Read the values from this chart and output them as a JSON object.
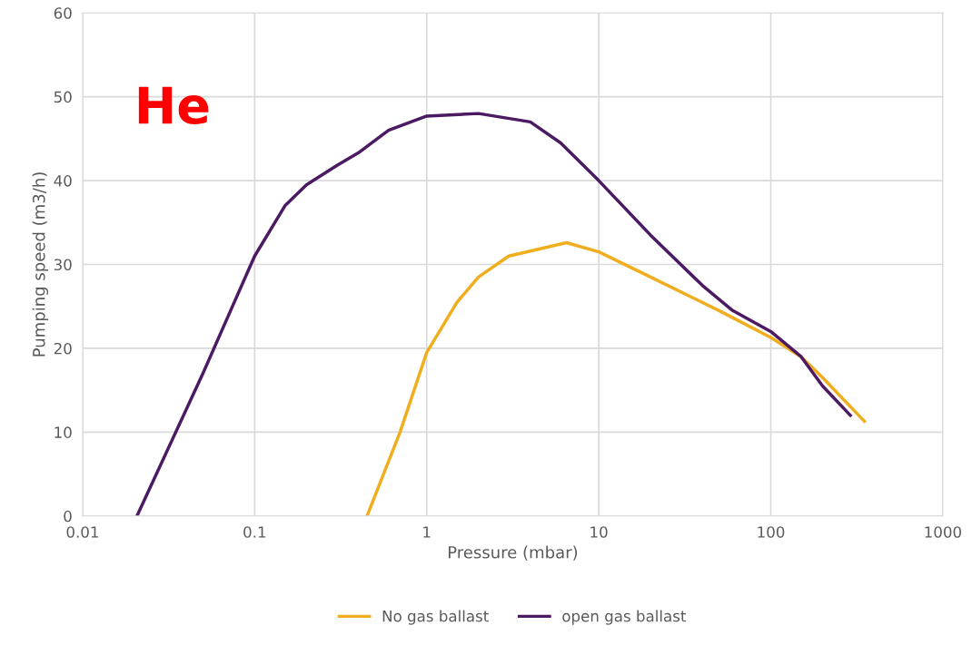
{
  "chart_data": {
    "type": "line",
    "xlabel": "Pressure (mbar)",
    "ylabel": "Pumping speed (m3/h)",
    "log": "x",
    "xlim": [
      0.01,
      1000
    ],
    "xticks": [
      0.01,
      0.1,
      1,
      10,
      100,
      1000
    ],
    "ylim": [
      0,
      60
    ],
    "yticks": [
      0,
      10,
      20,
      30,
      40,
      50,
      60
    ],
    "grid": true,
    "legend": "bottom",
    "marker": "none",
    "line_style": "solid",
    "annotations": [
      "He"
    ],
    "series": [
      {
        "name": "No gas ballast",
        "color": "#f0ae1e",
        "x": [
          0.45,
          0.7,
          1,
          1.5,
          2,
          3,
          6.5,
          10,
          20,
          50,
          100,
          150,
          200,
          350
        ],
        "values": [
          0,
          10,
          19.5,
          25.5,
          28.5,
          31,
          32.6,
          31.5,
          28.5,
          24.5,
          21.3,
          19,
          16.5,
          11.3
        ]
      },
      {
        "name": "open gas ballast",
        "color": "#4b1a63",
        "x": [
          0.0207,
          0.05,
          0.1,
          0.15,
          0.2,
          0.3,
          0.4,
          0.6,
          1,
          2,
          4,
          6,
          10,
          20,
          40,
          60,
          100,
          150,
          200,
          290
        ],
        "values": [
          0,
          17,
          31,
          37,
          39.5,
          41.8,
          43.3,
          46,
          47.7,
          48,
          47,
          44.5,
          40,
          33.5,
          27.5,
          24.5,
          22,
          19,
          15.5,
          12
        ]
      }
    ]
  }
}
